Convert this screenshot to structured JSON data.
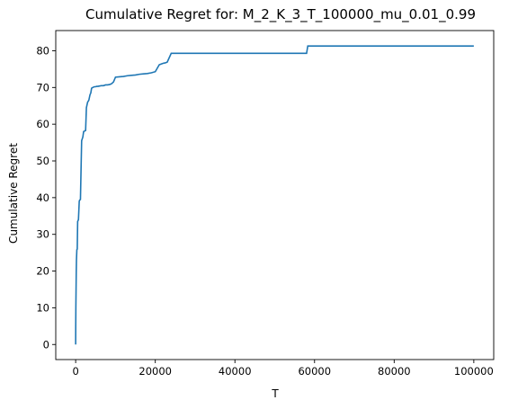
{
  "chart_data": {
    "type": "line",
    "title": "Cumulative Regret for: M_2_K_3_T_100000_mu_0.01_0.99",
    "xlabel": "T",
    "ylabel": "Cumulative Regret",
    "xlim": [
      -5000,
      105000
    ],
    "ylim": [
      -4.1,
      85.5
    ],
    "xticks": [
      0,
      20000,
      40000,
      60000,
      80000,
      100000
    ],
    "xtick_labels": [
      "0",
      "20000",
      "40000",
      "60000",
      "80000",
      "100000"
    ],
    "yticks": [
      0,
      10,
      20,
      30,
      40,
      50,
      60,
      70,
      80
    ],
    "ytick_labels": [
      "0",
      "10",
      "20",
      "30",
      "40",
      "50",
      "60",
      "70",
      "80"
    ],
    "grid": false,
    "line_color": "#1f77b4",
    "series": [
      {
        "x": [
          0,
          20,
          50,
          100,
          150,
          200,
          300,
          400,
          500,
          700,
          900,
          1000,
          1200,
          1500,
          1800,
          2000,
          2200,
          2500,
          2700,
          3000,
          3300,
          3600,
          3800,
          4000,
          4300,
          4700,
          5000,
          5300,
          5600,
          6000,
          6500,
          7000,
          7500,
          8000,
          8500,
          9000,
          9500,
          10000,
          11000,
          12000,
          13000,
          14000,
          15000,
          16000,
          17000,
          18000,
          19000,
          20000,
          21000,
          22000,
          22500,
          23000,
          24000,
          30000,
          40000,
          50000,
          58000,
          58300,
          70000,
          80000,
          90000,
          100000
        ],
        "y": [
          0,
          5,
          10,
          15,
          20,
          23,
          25.8,
          26,
          33.5,
          34,
          39,
          39.3,
          39.5,
          55.5,
          56.5,
          58,
          58.1,
          58.3,
          64.5,
          66,
          66.5,
          68,
          68.5,
          69.8,
          70,
          70.2,
          70.2,
          70.3,
          70.3,
          70.4,
          70.5,
          70.5,
          70.7,
          70.7,
          70.8,
          71,
          71.5,
          72.8,
          72.9,
          73,
          73.2,
          73.3,
          73.4,
          73.6,
          73.7,
          73.8,
          74,
          74.3,
          76.2,
          76.6,
          76.7,
          76.9,
          79.3,
          79.3,
          79.3,
          79.3,
          79.3,
          81.3,
          81.3,
          81.3,
          81.3,
          81.3
        ]
      }
    ]
  }
}
